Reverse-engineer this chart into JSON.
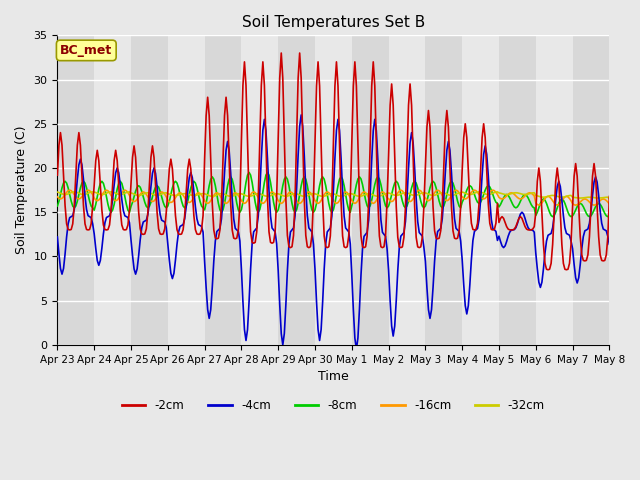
{
  "title": "Soil Temperatures Set B",
  "xlabel": "Time",
  "ylabel": "Soil Temperature (C)",
  "annotation": "BC_met",
  "ylim": [
    0,
    35
  ],
  "xlim": [
    0,
    360
  ],
  "yticks": [
    0,
    5,
    10,
    15,
    20,
    25,
    30,
    35
  ],
  "xtick_labels": [
    "Apr 23",
    "Apr 24",
    "Apr 25",
    "Apr 26",
    "Apr 27",
    "Apr 28",
    "Apr 29",
    "Apr 30",
    "May 1",
    "May 2",
    "May 3",
    "May 4",
    "May 5",
    "May 6",
    "May 7",
    "May 8"
  ],
  "xtick_positions": [
    0,
    24,
    48,
    72,
    96,
    120,
    144,
    168,
    192,
    216,
    240,
    264,
    288,
    312,
    336,
    360
  ],
  "series_colors": [
    "#cc0000",
    "#0000cc",
    "#00cc00",
    "#ff9900",
    "#cccc00"
  ],
  "series_labels": [
    "-2cm",
    "-4cm",
    "-8cm",
    "-16cm",
    "-32cm"
  ],
  "line_width": 1.2,
  "fig_bg_color": "#e8e8e8",
  "plot_bg_color": "#e0e0e0",
  "grid_color": "#ffffff",
  "annotation_fg": "#8b0000",
  "annotation_bg": "#ffff99",
  "annotation_edge": "#999900"
}
